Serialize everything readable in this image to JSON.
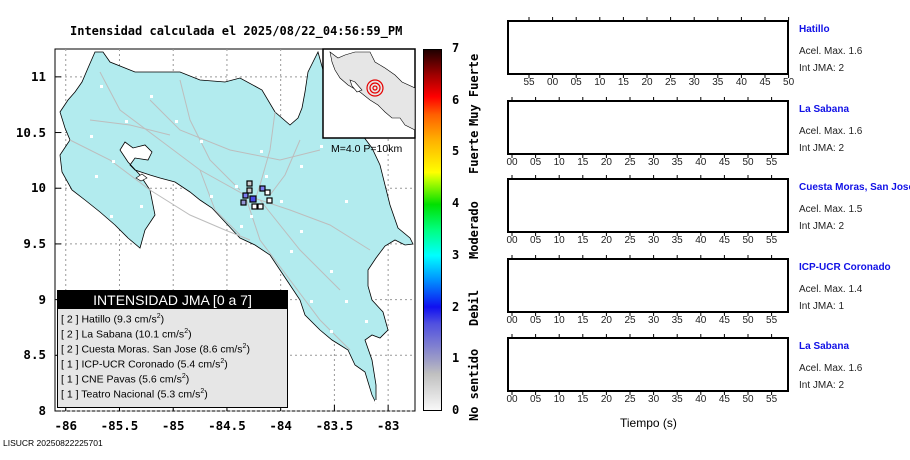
{
  "title": "Intensidad calculada el 2025/08/22_04:56:59_PM",
  "footer": "LISUCR 20250822225701",
  "map": {
    "y_ticks": [
      "11",
      "10.5",
      "10",
      "9.5",
      "9",
      "8.5",
      "8"
    ],
    "x_ticks": [
      "-86",
      "-85.5",
      "-85",
      "-84.5",
      "-84",
      "-83.5",
      "-83"
    ],
    "inset_label": "M=4.0 P=10km",
    "land_color": "#b2ebee",
    "legend": {
      "title": "INTENSIDAD JMA [0 a 7]",
      "items": [
        {
          "intensity": "[ 2 ]",
          "station": "Hatillo",
          "accel": "(9.3 cm/s",
          "unit_sup": "2",
          "close": ")"
        },
        {
          "intensity": "[ 2 ]",
          "station": "La Sabana",
          "accel": "(10.1 cm/s",
          "unit_sup": "2",
          "close": ")"
        },
        {
          "intensity": "[ 2 ]",
          "station": "Cuesta Moras. San Jose",
          "accel": "(8.6 cm/s",
          "unit_sup": "2",
          "close": ")"
        },
        {
          "intensity": "[ 1 ]",
          "station": "ICP-UCR Coronado",
          "accel": "(5.4 cm/s",
          "unit_sup": "2",
          "close": ")"
        },
        {
          "intensity": "[ 1 ]",
          "station": "CNE Pavas",
          "accel": "(5.6 cm/s",
          "unit_sup": "2",
          "close": ")"
        },
        {
          "intensity": "[ 1 ]",
          "station": "Teatro Nacional",
          "accel": "(5.3 cm/s",
          "unit_sup": "2",
          "close": ")"
        }
      ]
    }
  },
  "colorbar": {
    "ticks": [
      "0",
      "1",
      "2",
      "3",
      "4",
      "5",
      "6",
      "7"
    ],
    "labels": [
      "No sentido",
      "Debil",
      "Moderado",
      "Fuerte",
      "Muy Fuerte"
    ]
  },
  "traces": [
    {
      "station": "Hatillo",
      "accel": "Acel. Max. 1.6",
      "jma": "Int JMA: 2",
      "color": "#006400",
      "ticks": [
        "55",
        "00",
        "05",
        "10",
        "15",
        "20",
        "25",
        "30",
        "35",
        "40",
        "45",
        "50"
      ]
    },
    {
      "station": "La Sabana",
      "accel": "Acel. Max. 1.6",
      "jma": "Int JMA: 2",
      "color": "#006400",
      "ticks": [
        "00",
        "05",
        "10",
        "15",
        "20",
        "25",
        "30",
        "35",
        "40",
        "45",
        "50",
        "55"
      ]
    },
    {
      "station": "Cuesta Moras, San Jose",
      "accel": "Acel. Max. 1.5",
      "jma": "Int JMA: 2",
      "color": "#006400",
      "ticks": [
        "00",
        "05",
        "10",
        "15",
        "20",
        "25",
        "30",
        "35",
        "40",
        "45",
        "50",
        "55"
      ]
    },
    {
      "station": "ICP-UCR Coronado",
      "accel": "Acel. Max. 1.4",
      "jma": "Int JMA: 1",
      "color": "#006400",
      "ticks": [
        "00",
        "05",
        "10",
        "15",
        "20",
        "25",
        "30",
        "35",
        "40",
        "45",
        "50",
        "55"
      ]
    },
    {
      "station": "La Sabana",
      "accel": "Acel. Max. 1.6",
      "jma": "Int JMA: 2",
      "color": "#ffa500",
      "ticks": [
        "00",
        "05",
        "10",
        "15",
        "20",
        "25",
        "30",
        "35",
        "40",
        "45",
        "50",
        "55"
      ]
    }
  ],
  "x_axis_label": "Tiempo (s)",
  "chart_data": {
    "type": "line",
    "title": "Intensidad calculada el 2025/08/22_04:56:59_PM",
    "xlabel": "Tiempo (s)",
    "ylabel": "",
    "xlim": [
      -86.1,
      -82.75
    ],
    "ylim": [
      8,
      11.25
    ],
    "colorbar_range": [
      0,
      7
    ],
    "series": [
      {
        "name": "Hatillo",
        "pga_cm_s2": 9.3,
        "jma": 2,
        "acel_max": 1.6
      },
      {
        "name": "La Sabana",
        "pga_cm_s2": 10.1,
        "jma": 2,
        "acel_max": 1.6
      },
      {
        "name": "Cuesta Moras. San Jose",
        "pga_cm_s2": 8.6,
        "jma": 2,
        "acel_max": 1.5
      },
      {
        "name": "ICP-UCR Coronado",
        "pga_cm_s2": 5.4,
        "jma": 1,
        "acel_max": 1.4
      },
      {
        "name": "CNE Pavas",
        "pga_cm_s2": 5.6,
        "jma": 1
      },
      {
        "name": "Teatro Nacional",
        "pga_cm_s2": 5.3,
        "jma": 1
      }
    ]
  }
}
